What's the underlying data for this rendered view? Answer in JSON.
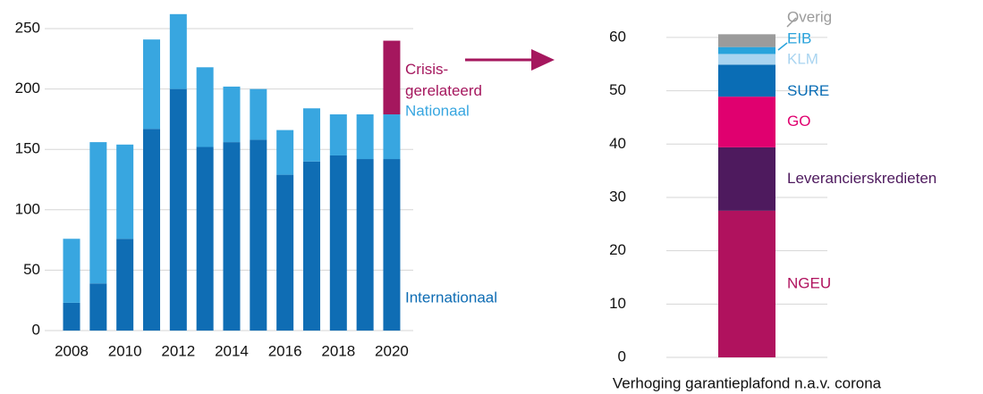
{
  "chart_data": [
    {
      "type": "bar",
      "stacked": true,
      "categories": [
        "2008",
        null,
        "2010",
        null,
        "2012",
        null,
        "2014",
        null,
        "2016",
        null,
        "2018",
        null,
        "2020"
      ],
      "series": [
        {
          "name": "Internationaal",
          "color": "#0f6db4",
          "values": [
            23,
            39,
            76,
            167,
            200,
            152,
            156,
            158,
            129,
            140,
            145,
            142,
            142
          ]
        },
        {
          "name": "Nationaal",
          "color": "#38a6e0",
          "values": [
            53,
            117,
            78,
            74,
            62,
            66,
            46,
            42,
            37,
            44,
            34,
            37,
            37
          ]
        },
        {
          "name": "Crisis-\ngerelateerd",
          "color": "#a5175e",
          "values": [
            null,
            null,
            null,
            null,
            null,
            null,
            null,
            null,
            null,
            null,
            null,
            null,
            61
          ]
        }
      ],
      "ylim": [
        0,
        266
      ],
      "yticks": [
        0,
        50,
        100,
        150,
        200,
        250
      ],
      "grid": true
    },
    {
      "type": "bar",
      "stacked": true,
      "xlabel": "Verhoging garantieplafond n.a.v. corona",
      "series": [
        {
          "name": "NGEU",
          "color": "#b0125e",
          "values": [
            27.5
          ]
        },
        {
          "name": "Leverancierskredieten",
          "color": "#4e1a5e",
          "values": [
            11.9
          ]
        },
        {
          "name": "GO",
          "color": "#e0006f",
          "values": [
            9.5
          ]
        },
        {
          "name": "SURE",
          "color": "#0a6db5",
          "values": [
            6.0
          ]
        },
        {
          "name": "KLM",
          "color": "#a9d4f0",
          "values": [
            2.0
          ]
        },
        {
          "name": "EIB",
          "color": "#29a3dc",
          "values": [
            1.3
          ]
        },
        {
          "name": "Overig",
          "color": "#9b9b9b",
          "values": [
            2.4
          ]
        }
      ],
      "ylim": [
        0,
        62
      ],
      "yticks": [
        0,
        10,
        20,
        30,
        40,
        50,
        60
      ],
      "grid": true
    }
  ]
}
